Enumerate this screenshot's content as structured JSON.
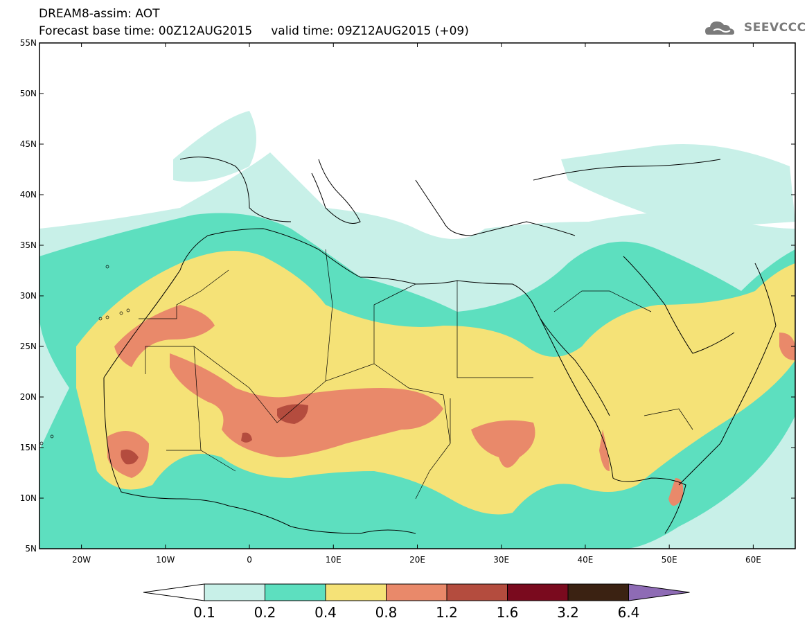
{
  "header": {
    "line1": "DREAM8-assim: AOT",
    "line2": "Forecast base time: 00Z12AUG2015     valid time: 09Z12AUG2015 (+09)"
  },
  "logo": {
    "text": "SEEVCCC",
    "icon": "cloud-icon"
  },
  "map": {
    "lon_labels": [
      "20W",
      "10W",
      "0",
      "10E",
      "20E",
      "30E",
      "40E",
      "50E",
      "60E"
    ],
    "lat_labels": [
      "55N",
      "50N",
      "45N",
      "40N",
      "35N",
      "30N",
      "25N",
      "20N",
      "15N",
      "10N",
      "5N"
    ],
    "lon_range": [
      -25,
      65
    ],
    "lat_range": [
      5,
      55
    ]
  },
  "colorbar": {
    "labels": [
      "0.1",
      "0.2",
      "0.4",
      "0.8",
      "1.2",
      "1.6",
      "3.2",
      "6.4"
    ],
    "colors": [
      "#c8f0e8",
      "#5ddfbf",
      "#f5e277",
      "#e9896a",
      "#b44c3e",
      "#7a0a1e",
      "#3b2212",
      "#8e6bb5"
    ]
  }
}
